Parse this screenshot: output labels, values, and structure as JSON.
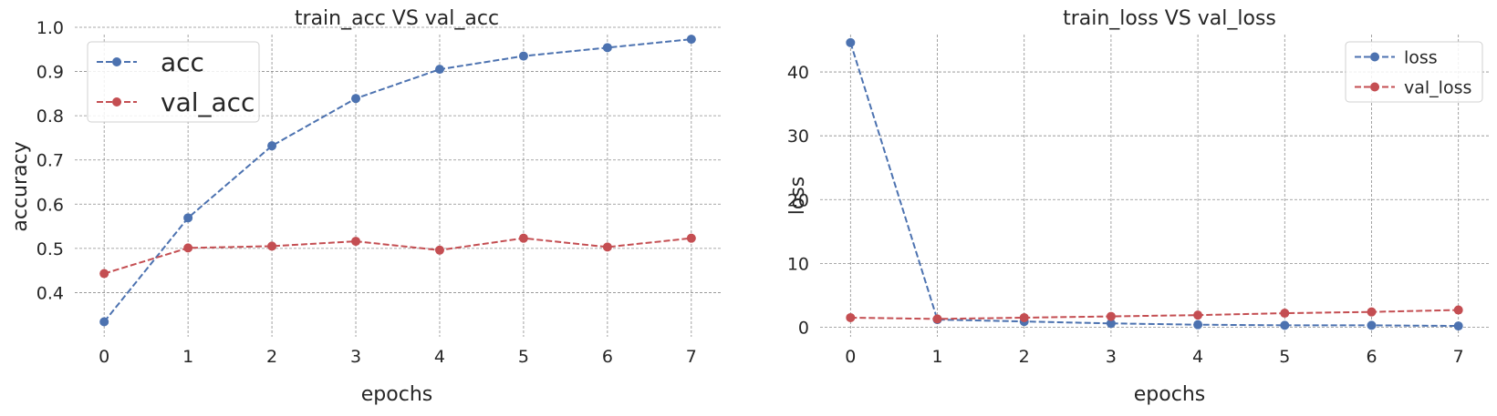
{
  "colors": {
    "blue": "#4c72b0",
    "red": "#c44e52"
  },
  "chart_data": [
    {
      "type": "line",
      "title": "train_acc VS val_acc",
      "xlabel": "epochs",
      "ylabel": "accuracy",
      "x": [
        0,
        1,
        2,
        3,
        4,
        5,
        6,
        7
      ],
      "xlim": [
        -0.35,
        7.35
      ],
      "ylim": [
        0.3,
        1.0
      ],
      "xticks": [
        0,
        1,
        2,
        3,
        4,
        5,
        6,
        7
      ],
      "yticks": [
        0.4,
        0.5,
        0.6,
        0.7,
        0.8,
        0.9,
        1.0
      ],
      "ytick_labels": [
        "0.4",
        "0.5",
        "0.6",
        "0.7",
        "0.8",
        "0.9",
        "1.0"
      ],
      "grid": true,
      "legend_position": "top-left",
      "series": [
        {
          "name": "acc",
          "color": "blue",
          "values": [
            0.334,
            0.569,
            0.732,
            0.839,
            0.905,
            0.935,
            0.954,
            0.973
          ]
        },
        {
          "name": "val_acc",
          "color": "red",
          "values": [
            0.443,
            0.501,
            0.505,
            0.516,
            0.496,
            0.523,
            0.503,
            0.523
          ]
        }
      ]
    },
    {
      "type": "line",
      "title": "train_loss VS val_loss",
      "xlabel": "epochs",
      "ylabel": "loss",
      "x": [
        0,
        1,
        2,
        3,
        4,
        5,
        6,
        7
      ],
      "xlim": [
        -0.35,
        7.35
      ],
      "ylim": [
        -1.5,
        47
      ],
      "xticks": [
        0,
        1,
        2,
        3,
        4,
        5,
        6,
        7
      ],
      "yticks": [
        0,
        10,
        20,
        30,
        40
      ],
      "ytick_labels": [
        "0",
        "10",
        "20",
        "30",
        "40"
      ],
      "grid": true,
      "legend_position": "top-right",
      "series": [
        {
          "name": "loss",
          "color": "blue",
          "values": [
            44.6,
            1.2,
            0.9,
            0.6,
            0.4,
            0.3,
            0.3,
            0.2
          ]
        },
        {
          "name": "val_loss",
          "color": "red",
          "values": [
            1.5,
            1.3,
            1.5,
            1.7,
            1.9,
            2.2,
            2.4,
            2.7
          ]
        }
      ]
    }
  ]
}
